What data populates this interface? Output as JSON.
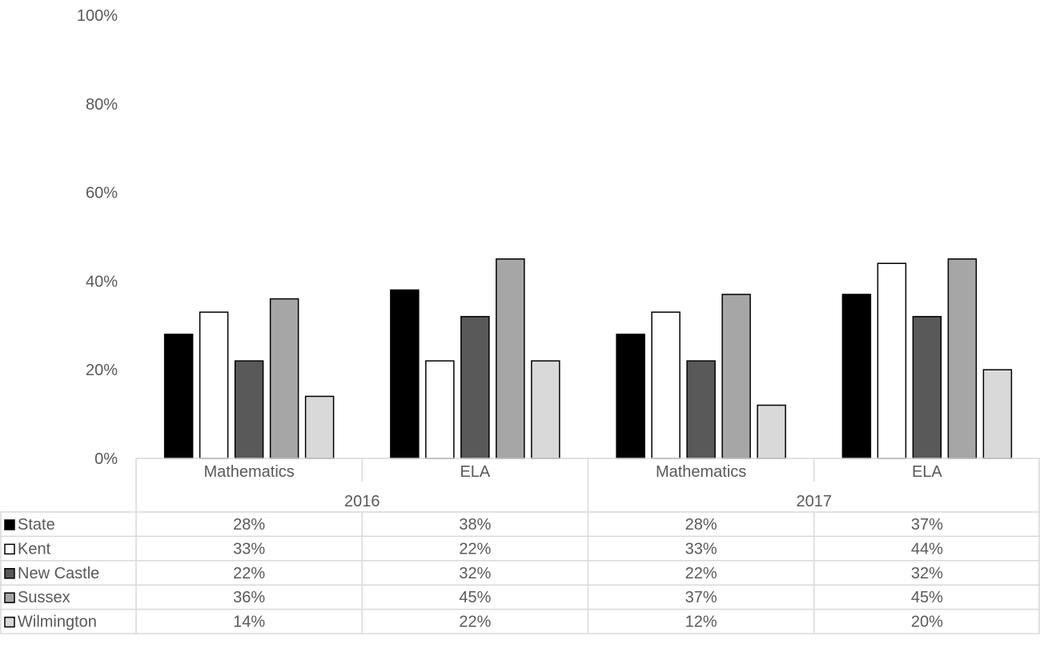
{
  "chart_data": {
    "type": "bar",
    "groups": [
      {
        "label": "2016",
        "categories": [
          "Mathematics",
          "ELA"
        ]
      },
      {
        "label": "2017",
        "categories": [
          "Mathematics",
          "ELA"
        ]
      }
    ],
    "categories": [
      "Mathematics",
      "ELA",
      "Mathematics",
      "ELA"
    ],
    "series": [
      {
        "name": "State",
        "values": [
          28,
          38,
          28,
          37
        ],
        "labels": [
          "28%",
          "38%",
          "28%",
          "37%"
        ],
        "color": "#000000"
      },
      {
        "name": "Kent",
        "values": [
          33,
          22,
          33,
          44
        ],
        "labels": [
          "33%",
          "22%",
          "33%",
          "44%"
        ],
        "color": "#ffffff"
      },
      {
        "name": "New Castle",
        "values": [
          22,
          32,
          22,
          32
        ],
        "labels": [
          "22%",
          "32%",
          "22%",
          "32%"
        ],
        "color": "#595959"
      },
      {
        "name": "Sussex",
        "values": [
          36,
          45,
          37,
          45
        ],
        "labels": [
          "36%",
          "45%",
          "37%",
          "45%"
        ],
        "color": "#a6a6a6"
      },
      {
        "name": "Wilmington",
        "values": [
          14,
          22,
          12,
          20
        ],
        "labels": [
          "14%",
          "22%",
          "12%",
          "20%"
        ],
        "color": "#d9d9d9"
      }
    ],
    "ylim": [
      0,
      100
    ],
    "y_ticks": [
      "0%",
      "20%",
      "40%",
      "60%",
      "80%",
      "100%"
    ],
    "y_tick_values": [
      0,
      20,
      40,
      60,
      80,
      100
    ],
    "grid": false,
    "legend": "data-table",
    "title": "",
    "xlabel": "",
    "ylabel": ""
  }
}
